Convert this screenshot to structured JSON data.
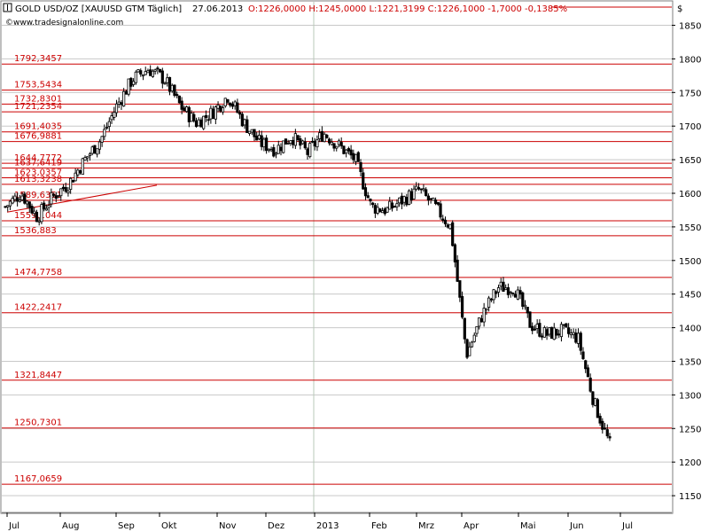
{
  "header": {
    "instrument": "GOLD USD/OZ [XAUUSD GTM  Täglich]",
    "date": "27.06.2013",
    "ohlc_change": "O:1226,0000 H:1245,0000 L:1221,3199 C:1226,1000 -1,7000 -0,1385%",
    "website": "www.tradesignalonline.com",
    "currency": "$"
  },
  "colors": {
    "candle": "#000000",
    "level_line": "#cc0000",
    "level_text": "#cc0000",
    "grid": "#c8c8c8",
    "frame": "#7f7f7f",
    "background": "#ffffff"
  },
  "chart_data": {
    "type": "candlestick",
    "y_axis": {
      "unit": "$",
      "ylim": [
        1125,
        1885
      ],
      "ticks": [
        "1150",
        "1200",
        "1250",
        "1300",
        "1350",
        "1400",
        "1450",
        "1500",
        "1550",
        "1600",
        "1650",
        "1700",
        "1750",
        "1800",
        "1850"
      ],
      "position": "right",
      "grid": true
    },
    "x_axis": {
      "labels": [
        "Jul",
        "Aug",
        "Sep",
        "Okt",
        "Nov",
        "Dez",
        "2013",
        "Feb",
        "Mrz",
        "Apr",
        "Mai",
        "Jun",
        "Jul"
      ],
      "grid": false
    },
    "horizontal_levels": [
      {
        "value": 1792.3457,
        "label": "1792,3457"
      },
      {
        "value": 1753.5434,
        "label": "1753,5434"
      },
      {
        "value": 1732.8301,
        "label": "1732,8301"
      },
      {
        "value": 1721.2354,
        "label": "1721,2354"
      },
      {
        "value": 1691.4035,
        "label": "1691,4035"
      },
      {
        "value": 1676.9881,
        "label": "1676,9881"
      },
      {
        "value": 1644.7772,
        "label": "1644,7772"
      },
      {
        "value": 1637.6419,
        "label": "1637,6419"
      },
      {
        "value": 1623.0357,
        "label": "1623,0357"
      },
      {
        "value": 1613.3238,
        "label": "1613,3238"
      },
      {
        "value": 1589.6351,
        "label": "1589,6351"
      },
      {
        "value": 1559.1044,
        "label": "1559,1044"
      },
      {
        "value": 1536.883,
        "label": "1536,883"
      },
      {
        "value": 1474.7758,
        "label": "1474,7758"
      },
      {
        "value": 1422.2417,
        "label": "1422,2417"
      },
      {
        "value": 1321.8447,
        "label": "1321,8447"
      },
      {
        "value": 1250.7301,
        "label": "1250,7301"
      },
      {
        "value": 1167.0659,
        "label": "1167,0659"
      }
    ],
    "trend_line": {
      "from": {
        "x": "Jul 2012",
        "y": 1572
      },
      "to": {
        "x": "Okt 2012",
        "y": 1612
      }
    },
    "price_path": [
      [
        "Jul",
        1580
      ],
      [
        "Jul",
        1600
      ],
      [
        "Jul",
        1565
      ],
      [
        "Aug",
        1595
      ],
      [
        "Aug",
        1615
      ],
      [
        "Aug",
        1650
      ],
      [
        "Sep",
        1680
      ],
      [
        "Sep",
        1730
      ],
      [
        "Sep",
        1770
      ],
      [
        "Okt",
        1785
      ],
      [
        "Okt",
        1770
      ],
      [
        "Okt",
        1730
      ],
      [
        "Nov",
        1705
      ],
      [
        "Nov",
        1720
      ],
      [
        "Nov",
        1745
      ],
      [
        "Dez",
        1705
      ],
      [
        "Dez",
        1675
      ],
      [
        "Dez",
        1665
      ],
      [
        "2013",
        1685
      ],
      [
        "2013",
        1660
      ],
      [
        "2013",
        1690
      ],
      [
        "Feb",
        1670
      ],
      [
        "Feb",
        1650
      ],
      [
        "Feb",
        1580
      ],
      [
        "Mrz",
        1575
      ],
      [
        "Mrz",
        1590
      ],
      [
        "Mrz",
        1605
      ],
      [
        "Apr",
        1580
      ],
      [
        "Apr",
        1550
      ],
      [
        "Apr",
        1360
      ],
      [
        "Apr",
        1420
      ],
      [
        "Mai",
        1460
      ],
      [
        "Mai",
        1460
      ],
      [
        "Mai",
        1405
      ],
      [
        "Jun",
        1390
      ],
      [
        "Jun",
        1395
      ],
      [
        "Jun",
        1385
      ],
      [
        "Jun",
        1290
      ],
      [
        "Jun",
        1226
      ]
    ]
  }
}
